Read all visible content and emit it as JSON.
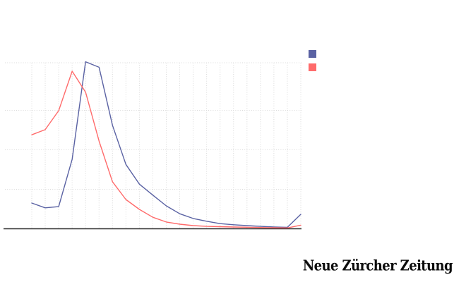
{
  "branding": {
    "wordmark": "Neue Zürcher Zeitung"
  },
  "chart_data": {
    "type": "line",
    "title": "",
    "xlabel": "",
    "ylabel": "",
    "x_labels": [],
    "point_count": 21,
    "y_unit": "horizontal-gridline spacings above baseline (axis has no visible labels)",
    "ylim": [
      0,
      4.35
    ],
    "grid": "dotted, light gray, on",
    "axis_line_color": "#2e2e2e",
    "grid_color": "#d9d9d9",
    "legend": {
      "position": "top-right",
      "entries": [
        {
          "swatch_color": "#5a62a3",
          "label": ""
        },
        {
          "swatch_color": "#ff6b6b",
          "label": ""
        }
      ]
    },
    "series": [
      {
        "name": "blue-series",
        "color": "#5a62a3",
        "values": [
          0.66,
          0.54,
          0.57,
          1.77,
          4.24,
          4.1,
          2.63,
          1.64,
          1.14,
          0.86,
          0.59,
          0.39,
          0.27,
          0.2,
          0.14,
          0.11,
          0.09,
          0.07,
          0.055,
          0.045,
          0.375
        ]
      },
      {
        "name": "red-series",
        "color": "#ff6b6b",
        "values": [
          2.39,
          2.52,
          3.0,
          4.0,
          3.47,
          2.23,
          1.2,
          0.75,
          0.5,
          0.3,
          0.18,
          0.125,
          0.09,
          0.07,
          0.063,
          0.054,
          0.048,
          0.041,
          0.036,
          0.03,
          0.1
        ]
      }
    ]
  }
}
